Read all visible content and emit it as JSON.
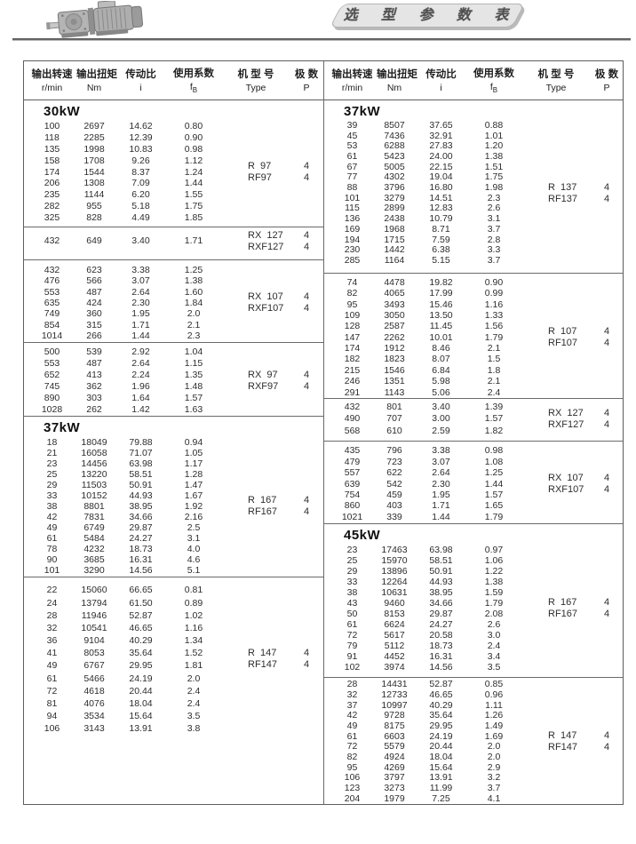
{
  "banner": {
    "title": "选 型 参 数 表"
  },
  "table": {
    "columns": [
      {
        "cn": "输出转速",
        "unit": "r/min"
      },
      {
        "cn": "输出扭矩",
        "unit": "Nm"
      },
      {
        "cn": "传动比",
        "unit": "i"
      },
      {
        "cn": "使用系数",
        "unit": "f",
        "unit_sub": "B"
      },
      {
        "cn": "机 型 号",
        "unit": "Type"
      },
      {
        "cn": "极 数",
        "unit": "P"
      }
    ],
    "left_blocks": [
      {
        "section": "30kW",
        "rows": [
          [
            "100",
            "2697",
            "14.62",
            "0.80"
          ],
          [
            "118",
            "2285",
            "12.39",
            "0.90"
          ],
          [
            "135",
            "1998",
            "10.83",
            "0.98"
          ],
          [
            "158",
            "1708",
            "9.26",
            "1.12"
          ],
          [
            "174",
            "1544",
            "8.37",
            "1.24"
          ],
          [
            "206",
            "1308",
            "7.09",
            "1.44"
          ],
          [
            "235",
            "1144",
            "6.20",
            "1.55"
          ],
          [
            "282",
            "955",
            "5.18",
            "1.75"
          ],
          [
            "325",
            "828",
            "4.49",
            "1.85"
          ]
        ],
        "types": [
          {
            "label": "R  97",
            "p": "4"
          },
          {
            "label": "RF97",
            "p": "4"
          }
        ]
      },
      {
        "rows": [
          [
            "432",
            "649",
            "3.40",
            "1.71"
          ]
        ],
        "types": [
          {
            "label": "RX  127",
            "p": "4"
          },
          {
            "label": "RXF127",
            "p": "4"
          }
        ]
      },
      {
        "rows": [
          [
            "432",
            "623",
            "3.38",
            "1.25"
          ],
          [
            "476",
            "566",
            "3.07",
            "1.38"
          ],
          [
            "553",
            "487",
            "2.64",
            "1.60"
          ],
          [
            "635",
            "424",
            "2.30",
            "1.84"
          ],
          [
            "749",
            "360",
            "1.95",
            "2.0"
          ],
          [
            "854",
            "315",
            "1.71",
            "2.1"
          ],
          [
            "1014",
            "266",
            "1.44",
            "2.3"
          ]
        ],
        "types": [
          {
            "label": "RX  107",
            "p": "4"
          },
          {
            "label": "RXF107",
            "p": "4"
          }
        ]
      },
      {
        "rows": [
          [
            "500",
            "539",
            "2.92",
            "1.04"
          ],
          [
            "553",
            "487",
            "2.64",
            "1.15"
          ],
          [
            "652",
            "413",
            "2.24",
            "1.35"
          ],
          [
            "745",
            "362",
            "1.96",
            "1.48"
          ],
          [
            "890",
            "303",
            "1.64",
            "1.57"
          ],
          [
            "1028",
            "262",
            "1.42",
            "1.63"
          ]
        ],
        "types": [
          {
            "label": "RX  97",
            "p": "4"
          },
          {
            "label": "RXF97",
            "p": "4"
          }
        ]
      },
      {
        "section": "37kW",
        "rows": [
          [
            "18",
            "18049",
            "79.88",
            "0.94"
          ],
          [
            "21",
            "16058",
            "71.07",
            "1.05"
          ],
          [
            "23",
            "14456",
            "63.98",
            "1.17"
          ],
          [
            "25",
            "13220",
            "58.51",
            "1.28"
          ],
          [
            "29",
            "11503",
            "50.91",
            "1.47"
          ],
          [
            "33",
            "10152",
            "44.93",
            "1.67"
          ],
          [
            "38",
            "8801",
            "38.95",
            "1.92"
          ],
          [
            "42",
            "7831",
            "34.66",
            "2.16"
          ],
          [
            "49",
            "6749",
            "29.87",
            "2.5"
          ],
          [
            "61",
            "5484",
            "24.27",
            "3.1"
          ],
          [
            "78",
            "4232",
            "18.73",
            "4.0"
          ],
          [
            "90",
            "3685",
            "16.31",
            "4.6"
          ],
          [
            "101",
            "3290",
            "14.56",
            "5.1"
          ]
        ],
        "types": [
          {
            "label": "R  167",
            "p": "4"
          },
          {
            "label": "RF167",
            "p": "4"
          }
        ]
      },
      {
        "rows": [
          [
            "22",
            "15060",
            "66.65",
            "0.81"
          ],
          [
            "24",
            "13794",
            "61.50",
            "0.89"
          ],
          [
            "28",
            "11946",
            "52.87",
            "1.02"
          ],
          [
            "32",
            "10541",
            "46.65",
            "1.16"
          ],
          [
            "36",
            "9104",
            "40.29",
            "1.34"
          ],
          [
            "41",
            "8053",
            "35.64",
            "1.52"
          ],
          [
            "49",
            "6767",
            "29.95",
            "1.81"
          ],
          [
            "61",
            "5466",
            "24.19",
            "2.0"
          ],
          [
            "72",
            "4618",
            "20.44",
            "2.4"
          ],
          [
            "81",
            "4076",
            "18.04",
            "2.4"
          ],
          [
            "94",
            "3534",
            "15.64",
            "3.5"
          ],
          [
            "106",
            "3143",
            "13.91",
            "3.8"
          ]
        ],
        "types": [
          {
            "label": "R  147",
            "p": "4"
          },
          {
            "label": "RF147",
            "p": "4"
          }
        ]
      }
    ],
    "right_blocks": [
      {
        "section": "37kW",
        "rows": [
          [
            "39",
            "8507",
            "37.65",
            "0.88"
          ],
          [
            "45",
            "7436",
            "32.91",
            "1.01"
          ],
          [
            "53",
            "6288",
            "27.83",
            "1.20"
          ],
          [
            "61",
            "5423",
            "24.00",
            "1.38"
          ],
          [
            "67",
            "5005",
            "22.15",
            "1.51"
          ],
          [
            "77",
            "4302",
            "19.04",
            "1.75"
          ],
          [
            "88",
            "3796",
            "16.80",
            "1.98"
          ],
          [
            "101",
            "3279",
            "14.51",
            "2.3"
          ],
          [
            "115",
            "2899",
            "12.83",
            "2.6"
          ],
          [
            "136",
            "2438",
            "10.79",
            "3.1"
          ],
          [
            "169",
            "1968",
            "8.71",
            "3.7"
          ],
          [
            "194",
            "1715",
            "7.59",
            "2.8"
          ],
          [
            "230",
            "1442",
            "6.38",
            "3.3"
          ],
          [
            "285",
            "1164",
            "5.15",
            "3.7"
          ]
        ],
        "types": [
          {
            "label": "R  137",
            "p": "4"
          },
          {
            "label": "RF137",
            "p": "4"
          }
        ]
      },
      {
        "rows": [
          [
            "74",
            "4478",
            "19.82",
            "0.90"
          ],
          [
            "82",
            "4065",
            "17.99",
            "0.99"
          ],
          [
            "95",
            "3493",
            "15.46",
            "1.16"
          ],
          [
            "109",
            "3050",
            "13.50",
            "1.33"
          ],
          [
            "128",
            "2587",
            "11.45",
            "1.56"
          ],
          [
            "147",
            "2262",
            "10.01",
            "1.79"
          ],
          [
            "174",
            "1912",
            "8.46",
            "2.1"
          ],
          [
            "182",
            "1823",
            "8.07",
            "1.5"
          ],
          [
            "215",
            "1546",
            "6.84",
            "1.8"
          ],
          [
            "246",
            "1351",
            "5.98",
            "2.1"
          ],
          [
            "291",
            "1143",
            "5.06",
            "2.4"
          ]
        ],
        "types": [
          {
            "label": "R  107",
            "p": "4"
          },
          {
            "label": "RF107",
            "p": "4"
          }
        ]
      },
      {
        "rows": [
          [
            "432",
            "801",
            "3.40",
            "1.39"
          ],
          [
            "490",
            "707",
            "3.00",
            "1.57"
          ],
          [
            "568",
            "610",
            "2.59",
            "1.82"
          ]
        ],
        "types": [
          {
            "label": "RX  127",
            "p": "4"
          },
          {
            "label": "RXF127",
            "p": "4"
          }
        ]
      },
      {
        "rows": [
          [
            "435",
            "796",
            "3.38",
            "0.98"
          ],
          [
            "479",
            "723",
            "3.07",
            "1.08"
          ],
          [
            "557",
            "622",
            "2.64",
            "1.25"
          ],
          [
            "639",
            "542",
            "2.30",
            "1.44"
          ],
          [
            "754",
            "459",
            "1.95",
            "1.57"
          ],
          [
            "860",
            "403",
            "1.71",
            "1.65"
          ],
          [
            "1021",
            "339",
            "1.44",
            "1.79"
          ]
        ],
        "types": [
          {
            "label": "RX  107",
            "p": "4"
          },
          {
            "label": "RXF107",
            "p": "4"
          }
        ]
      },
      {
        "section": "45kW",
        "rows": [
          [
            "23",
            "17463",
            "63.98",
            "0.97"
          ],
          [
            "25",
            "15970",
            "58.51",
            "1.06"
          ],
          [
            "29",
            "13896",
            "50.91",
            "1.22"
          ],
          [
            "33",
            "12264",
            "44.93",
            "1.38"
          ],
          [
            "38",
            "10631",
            "38.95",
            "1.59"
          ],
          [
            "43",
            "9460",
            "34.66",
            "1.79"
          ],
          [
            "50",
            "8153",
            "29.87",
            "2.08"
          ],
          [
            "61",
            "6624",
            "24.27",
            "2.6"
          ],
          [
            "72",
            "5617",
            "20.58",
            "3.0"
          ],
          [
            "79",
            "5112",
            "18.73",
            "2.4"
          ],
          [
            "91",
            "4452",
            "16.31",
            "3.4"
          ],
          [
            "102",
            "3974",
            "14.56",
            "3.5"
          ]
        ],
        "types": [
          {
            "label": "R  167",
            "p": "4"
          },
          {
            "label": "RF167",
            "p": "4"
          }
        ]
      },
      {
        "rows": [
          [
            "28",
            "14431",
            "52.87",
            "0.85"
          ],
          [
            "32",
            "12733",
            "46.65",
            "0.96"
          ],
          [
            "37",
            "10997",
            "40.29",
            "1.11"
          ],
          [
            "42",
            "9728",
            "35.64",
            "1.26"
          ],
          [
            "49",
            "8175",
            "29.95",
            "1.49"
          ],
          [
            "61",
            "6603",
            "24.19",
            "1.69"
          ],
          [
            "72",
            "5579",
            "20.44",
            "2.0"
          ],
          [
            "82",
            "4924",
            "18.04",
            "2.0"
          ],
          [
            "95",
            "4269",
            "15.64",
            "2.9"
          ],
          [
            "106",
            "3797",
            "13.91",
            "3.2"
          ],
          [
            "123",
            "3273",
            "11.99",
            "3.7"
          ],
          [
            "204",
            "1979",
            "7.25",
            "4.1"
          ]
        ],
        "types": [
          {
            "label": "R  147",
            "p": "4"
          },
          {
            "label": "RF147",
            "p": "4"
          }
        ]
      }
    ]
  }
}
